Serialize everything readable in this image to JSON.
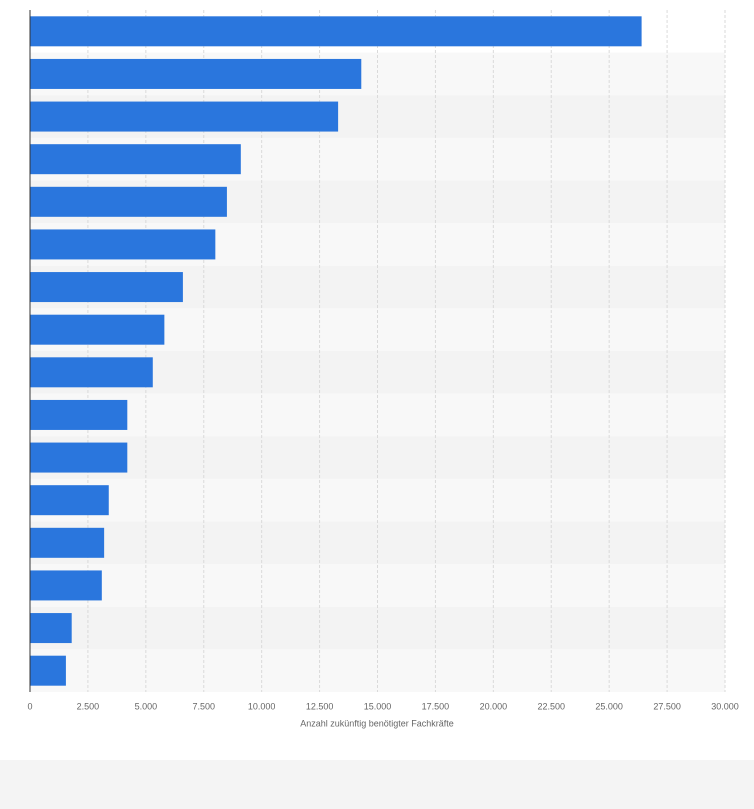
{
  "chart_data": {
    "type": "bar",
    "orientation": "horizontal",
    "x_label": "Anzahl zukünftig benötigter Fachkräfte",
    "categories": [
      null,
      null,
      null,
      null,
      null,
      null,
      null,
      null,
      null,
      null,
      null,
      null,
      null,
      null,
      null,
      null
    ],
    "values": [
      26400,
      14300,
      13300,
      9100,
      8500,
      8000,
      6600,
      5800,
      5300,
      4200,
      4200,
      3400,
      3200,
      3100,
      1800,
      1550
    ],
    "color": "#2a76dd",
    "xlim": [
      0,
      30000
    ],
    "xticks": [
      0,
      {
        "value": 2500,
        "label": "2.500"
      },
      {
        "value": 5000,
        "label": "5.000"
      },
      {
        "value": 7500,
        "label": "7.500"
      },
      {
        "value": 10000,
        "label": "10.000"
      },
      {
        "value": 12500,
        "label": "12.500"
      },
      {
        "value": 15000,
        "label": "15.000"
      },
      {
        "value": 17500,
        "label": "17.500"
      },
      {
        "value": 20000,
        "label": "20.000"
      },
      {
        "value": 22500,
        "label": "22.500"
      },
      {
        "value": 25000,
        "label": "25.000"
      },
      {
        "value": 27500,
        "label": "27.500"
      },
      {
        "value": 30000,
        "label": "30.000"
      }
    ],
    "grid": true
  }
}
